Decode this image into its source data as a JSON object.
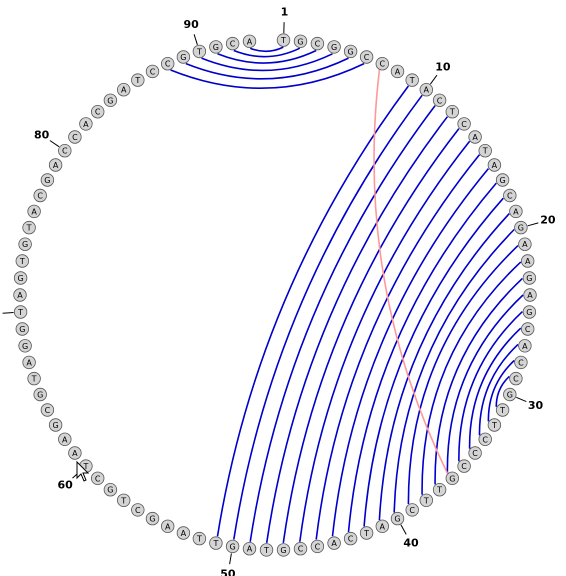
{
  "sequence": "TGCGGCCATACTCATAGCAGAAGAGCACCGTTCCCGTTCGATCACCGTAGTTAAGCTGCTAAGCGTAGGTAGTGTACGACCACGATCCGTGCA",
  "position_labels": [
    "1",
    "10",
    "20",
    "30",
    "40",
    "50",
    "60",
    "70",
    "80",
    "90"
  ],
  "pairs": [
    [
      1,
      93
    ],
    [
      2,
      92
    ],
    [
      3,
      91
    ],
    [
      4,
      90
    ],
    [
      5,
      89
    ],
    [
      6,
      88
    ],
    [
      9,
      51
    ],
    [
      10,
      50
    ],
    [
      11,
      49
    ],
    [
      12,
      48
    ],
    [
      13,
      47
    ],
    [
      14,
      46
    ],
    [
      15,
      45
    ],
    [
      16,
      44
    ],
    [
      17,
      43
    ],
    [
      18,
      42
    ],
    [
      19,
      41
    ],
    [
      20,
      40
    ],
    [
      21,
      39
    ],
    [
      22,
      38
    ],
    [
      23,
      37
    ],
    [
      24,
      36
    ],
    [
      25,
      35
    ],
    [
      26,
      34
    ],
    [
      27,
      33
    ],
    [
      28,
      32
    ],
    [
      29,
      31
    ],
    [
      30,
      30
    ]
  ],
  "pseudoknot_pairs": [
    [
      7,
      36
    ]
  ],
  "colors": {
    "pair_line": "#0000cc",
    "pseudoknot_line": "#ff9999",
    "nucleotide_fill": "#d4d4d4"
  },
  "cursor_icon": "arrow-cursor-icon"
}
